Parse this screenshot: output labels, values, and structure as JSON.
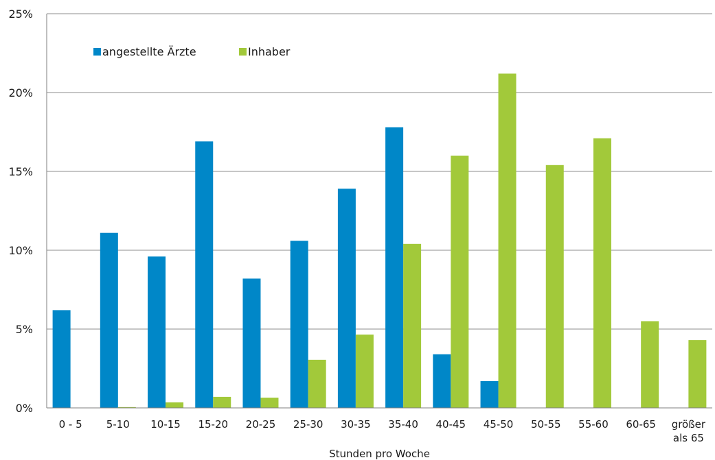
{
  "chart_data": {
    "type": "bar",
    "categories": [
      "0 - 5",
      "5-10",
      "10-15",
      "15-20",
      "20-25",
      "25-30",
      "30-35",
      "35-40",
      "40-45",
      "45-50",
      "50-55",
      "55-60",
      "60-65",
      "größer als 65"
    ],
    "series": [
      {
        "name": "angestellte Ärzte",
        "color": "#0087c8",
        "values": [
          6.2,
          11.1,
          9.6,
          16.9,
          8.2,
          10.6,
          13.9,
          17.8,
          3.4,
          1.7,
          0,
          0,
          0,
          0
        ]
      },
      {
        "name": "Inhaber",
        "color": "#a2c93a",
        "values": [
          0,
          0.05,
          0.35,
          0.7,
          0.65,
          3.05,
          4.65,
          10.4,
          16.0,
          21.2,
          15.4,
          17.1,
          5.5,
          4.3
        ]
      }
    ],
    "y_ticks": [
      "0%",
      "5%",
      "10%",
      "15%",
      "20%",
      "25%"
    ],
    "xlabel": "Stunden pro Woche",
    "ylabel": "",
    "ylim": [
      0,
      25
    ],
    "grid": true,
    "legend": "top-left"
  }
}
